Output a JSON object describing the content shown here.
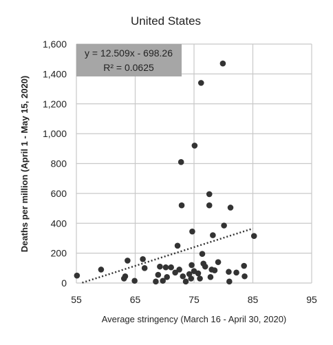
{
  "chart_data": {
    "type": "scatter",
    "title": "United States",
    "xlabel": "Average stringency (March 16 - April 30, 2020)",
    "ylabel": "Deaths per million (April 1 - May 15, 2020)",
    "xlim": [
      55,
      95
    ],
    "ylim": [
      0,
      1600
    ],
    "x_ticks": [
      55,
      65,
      75,
      85,
      95
    ],
    "x_tick_labels": [
      "55",
      "65",
      "75",
      "85",
      "95"
    ],
    "y_ticks": [
      0,
      200,
      400,
      600,
      800,
      1000,
      1200,
      1400,
      1600
    ],
    "y_tick_labels": [
      "0",
      "200",
      "400",
      "600",
      "800",
      "1,000",
      "1,200",
      "1,400",
      "1,600"
    ],
    "grid": true,
    "trendline": {
      "style": "dotted",
      "slope": 12.509,
      "intercept": -698.26,
      "x_range": [
        56,
        85
      ],
      "equation": "y = 12.509x - 698.26",
      "r_squared": "R² = 0.0625"
    },
    "points": [
      {
        "x": 55.1,
        "y": 50
      },
      {
        "x": 59.2,
        "y": 90
      },
      {
        "x": 63.1,
        "y": 30
      },
      {
        "x": 63.3,
        "y": 45
      },
      {
        "x": 63.7,
        "y": 150
      },
      {
        "x": 64.9,
        "y": 15
      },
      {
        "x": 66.3,
        "y": 160
      },
      {
        "x": 66.6,
        "y": 100
      },
      {
        "x": 68.5,
        "y": 10
      },
      {
        "x": 68.9,
        "y": 55
      },
      {
        "x": 69.2,
        "y": 110
      },
      {
        "x": 69.7,
        "y": 15
      },
      {
        "x": 70.2,
        "y": 105
      },
      {
        "x": 70.4,
        "y": 40
      },
      {
        "x": 71.1,
        "y": 105
      },
      {
        "x": 71.8,
        "y": 70
      },
      {
        "x": 72.2,
        "y": 250
      },
      {
        "x": 72.5,
        "y": 90
      },
      {
        "x": 72.8,
        "y": 810
      },
      {
        "x": 72.9,
        "y": 520
      },
      {
        "x": 73.1,
        "y": 45
      },
      {
        "x": 73.6,
        "y": 10
      },
      {
        "x": 74.2,
        "y": 60
      },
      {
        "x": 74.5,
        "y": 30
      },
      {
        "x": 74.6,
        "y": 120
      },
      {
        "x": 74.7,
        "y": 345
      },
      {
        "x": 75.0,
        "y": 80
      },
      {
        "x": 75.1,
        "y": 920
      },
      {
        "x": 75.7,
        "y": 65
      },
      {
        "x": 76.0,
        "y": 30
      },
      {
        "x": 76.2,
        "y": 1340
      },
      {
        "x": 76.4,
        "y": 195
      },
      {
        "x": 76.6,
        "y": 130
      },
      {
        "x": 76.9,
        "y": 110
      },
      {
        "x": 77.6,
        "y": 595
      },
      {
        "x": 77.6,
        "y": 520
      },
      {
        "x": 77.8,
        "y": 40
      },
      {
        "x": 78.0,
        "y": 90
      },
      {
        "x": 78.2,
        "y": 320
      },
      {
        "x": 78.5,
        "y": 85
      },
      {
        "x": 79.1,
        "y": 140
      },
      {
        "x": 79.9,
        "y": 1470
      },
      {
        "x": 80.1,
        "y": 385
      },
      {
        "x": 80.9,
        "y": 75
      },
      {
        "x": 81.0,
        "y": 10
      },
      {
        "x": 81.2,
        "y": 505
      },
      {
        "x": 82.2,
        "y": 70
      },
      {
        "x": 83.5,
        "y": 115
      },
      {
        "x": 83.6,
        "y": 45
      },
      {
        "x": 85.2,
        "y": 315
      }
    ]
  }
}
